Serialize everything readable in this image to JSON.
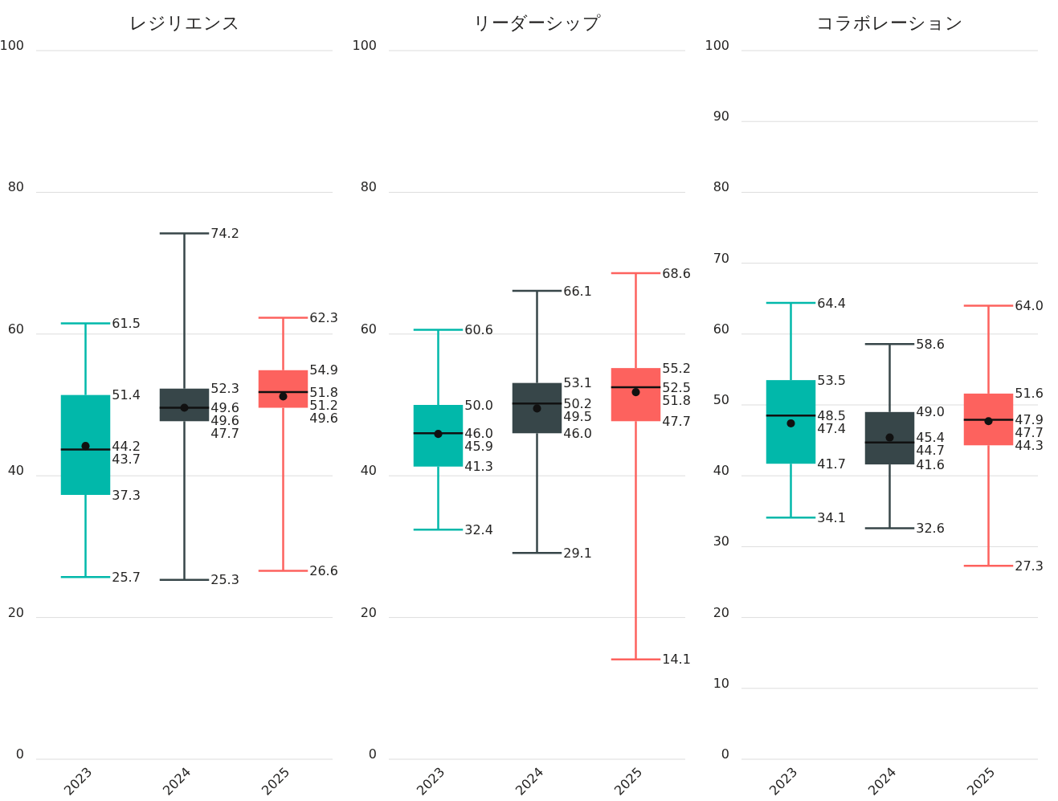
{
  "chart_data": [
    {
      "type": "box",
      "title": "レジリエンス",
      "categories": [
        "2023",
        "2024",
        "2025"
      ],
      "colors": [
        "#01b8aa",
        "#374649",
        "#fd625e"
      ],
      "ylim": [
        0,
        100
      ],
      "yticks": [
        0,
        20,
        40,
        60,
        80,
        100
      ],
      "grid": "y",
      "marker": "circle",
      "boxes": [
        {
          "low": 25.7,
          "q1": 37.3,
          "median": 43.7,
          "q3": 51.4,
          "high": 61.5
        },
        {
          "low": 25.3,
          "q1": 47.7,
          "median": 49.6,
          "q3": 52.3,
          "high": 74.2
        },
        {
          "low": 26.6,
          "q1": 49.6,
          "median": 51.8,
          "q3": 54.9,
          "high": 62.3
        }
      ],
      "series": [
        {
          "type": "scatter",
          "values": [
            44.2,
            49.6,
            51.2
          ],
          "color": "#111111"
        }
      ],
      "annotations": [
        {
          "text": "61.5",
          "x": "2023",
          "y": 61.5
        },
        {
          "text": "51.4",
          "x": "2023",
          "y": 51.4
        },
        {
          "text": "44.2",
          "x": "2023",
          "y": 44.2
        },
        {
          "text": "43.7",
          "x": "2023",
          "y": 43.7
        },
        {
          "text": "37.3",
          "x": "2023",
          "y": 37.3
        },
        {
          "text": "25.7",
          "x": "2023",
          "y": 25.7
        },
        {
          "text": "74.2",
          "x": "2024",
          "y": 74.2
        },
        {
          "text": "52.3",
          "x": "2024",
          "y": 52.3
        },
        {
          "text": "49.6",
          "x": "2024",
          "y": 49.6
        },
        {
          "text": "49.6",
          "x": "2024",
          "y": 49.6
        },
        {
          "text": "47.7",
          "x": "2024",
          "y": 47.7
        },
        {
          "text": "25.3",
          "x": "2024",
          "y": 25.3
        },
        {
          "text": "62.3",
          "x": "2025",
          "y": 62.3
        },
        {
          "text": "54.9",
          "x": "2025",
          "y": 54.9
        },
        {
          "text": "51.8",
          "x": "2025",
          "y": 51.8
        },
        {
          "text": "51.2",
          "x": "2025",
          "y": 51.2
        },
        {
          "text": "49.6",
          "x": "2025",
          "y": 49.6
        },
        {
          "text": "26.6",
          "x": "2025",
          "y": 26.6
        }
      ]
    },
    {
      "type": "box",
      "title": "リーダーシップ",
      "categories": [
        "2023",
        "2024",
        "2025"
      ],
      "colors": [
        "#01b8aa",
        "#374649",
        "#fd625e"
      ],
      "ylim": [
        0,
        100
      ],
      "yticks": [
        0,
        20,
        40,
        60,
        80,
        100
      ],
      "grid": "y",
      "marker": "circle",
      "boxes": [
        {
          "low": 32.4,
          "q1": 41.3,
          "median": 46.0,
          "q3": 50.0,
          "high": 60.6
        },
        {
          "low": 29.1,
          "q1": 46.0,
          "median": 50.2,
          "q3": 53.1,
          "high": 66.1
        },
        {
          "low": 14.1,
          "q1": 47.7,
          "median": 52.5,
          "q3": 55.2,
          "high": 68.6
        }
      ],
      "series": [
        {
          "type": "scatter",
          "values": [
            45.9,
            49.5,
            51.8
          ],
          "color": "#111111"
        }
      ],
      "annotations": [
        {
          "text": "60.6",
          "x": "2023",
          "y": 60.6
        },
        {
          "text": "50.0",
          "x": "2023",
          "y": 50.0
        },
        {
          "text": "46.0",
          "x": "2023",
          "y": 46.0
        },
        {
          "text": "45.9",
          "x": "2023",
          "y": 45.9
        },
        {
          "text": "41.3",
          "x": "2023",
          "y": 41.3
        },
        {
          "text": "32.4",
          "x": "2023",
          "y": 32.4
        },
        {
          "text": "66.1",
          "x": "2024",
          "y": 66.1
        },
        {
          "text": "53.1",
          "x": "2024",
          "y": 53.1
        },
        {
          "text": "50.2",
          "x": "2024",
          "y": 50.2
        },
        {
          "text": "49.5",
          "x": "2024",
          "y": 49.5
        },
        {
          "text": "46.0",
          "x": "2024",
          "y": 46.0
        },
        {
          "text": "29.1",
          "x": "2024",
          "y": 29.1
        },
        {
          "text": "68.6",
          "x": "2025",
          "y": 68.6
        },
        {
          "text": "55.2",
          "x": "2025",
          "y": 55.2
        },
        {
          "text": "52.5",
          "x": "2025",
          "y": 52.5
        },
        {
          "text": "51.8",
          "x": "2025",
          "y": 51.8
        },
        {
          "text": "47.7",
          "x": "2025",
          "y": 47.7
        },
        {
          "text": "14.1",
          "x": "2025",
          "y": 14.1
        }
      ]
    },
    {
      "type": "box",
      "title": "コラボレーション",
      "categories": [
        "2023",
        "2024",
        "2025"
      ],
      "colors": [
        "#01b8aa",
        "#374649",
        "#fd625e"
      ],
      "ylim": [
        0,
        100
      ],
      "yticks": [
        0,
        10,
        20,
        30,
        40,
        50,
        60,
        70,
        80,
        90,
        100
      ],
      "grid": "y",
      "marker": "circle",
      "boxes": [
        {
          "low": 34.1,
          "q1": 41.7,
          "median": 48.5,
          "q3": 53.5,
          "high": 64.4
        },
        {
          "low": 32.6,
          "q1": 41.6,
          "median": 44.7,
          "q3": 49.0,
          "high": 58.6
        },
        {
          "low": 27.3,
          "q1": 44.3,
          "median": 47.9,
          "q3": 51.6,
          "high": 64.0
        }
      ],
      "series": [
        {
          "type": "scatter",
          "values": [
            47.4,
            45.4,
            47.7
          ],
          "color": "#111111"
        }
      ],
      "annotations": [
        {
          "text": "64.4",
          "x": "2023",
          "y": 64.4
        },
        {
          "text": "53.5",
          "x": "2023",
          "y": 53.5
        },
        {
          "text": "48.5",
          "x": "2023",
          "y": 48.5
        },
        {
          "text": "47.4",
          "x": "2023",
          "y": 47.4
        },
        {
          "text": "41.7",
          "x": "2023",
          "y": 41.7
        },
        {
          "text": "34.1",
          "x": "2023",
          "y": 34.1
        },
        {
          "text": "58.6",
          "x": "2024",
          "y": 58.6
        },
        {
          "text": "49.0",
          "x": "2024",
          "y": 49.0
        },
        {
          "text": "45.4",
          "x": "2024",
          "y": 45.4
        },
        {
          "text": "44.7",
          "x": "2024",
          "y": 44.7
        },
        {
          "text": "41.6",
          "x": "2024",
          "y": 41.6
        },
        {
          "text": "32.6",
          "x": "2024",
          "y": 32.6
        },
        {
          "text": "64.0",
          "x": "2025",
          "y": 64.0
        },
        {
          "text": "51.6",
          "x": "2025",
          "y": 51.6
        },
        {
          "text": "47.9",
          "x": "2025",
          "y": 47.9
        },
        {
          "text": "47.7",
          "x": "2025",
          "y": 47.7
        },
        {
          "text": "44.3",
          "x": "2025",
          "y": 44.3
        },
        {
          "text": "27.3",
          "x": "2025",
          "y": 27.3
        }
      ]
    }
  ]
}
